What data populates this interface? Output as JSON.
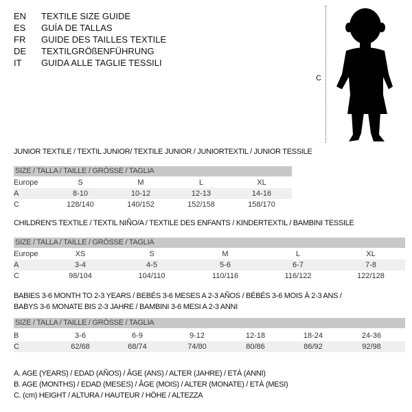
{
  "languages": [
    {
      "code": "EN",
      "text": "TEXTILE SIZE GUIDE"
    },
    {
      "code": "ES",
      "text": "GUÍA DE TALLAS"
    },
    {
      "code": "FR",
      "text": "GUIDE DES TAILLES TEXTILE"
    },
    {
      "code": "DE",
      "text": "TEXTILGRÖßENFÜHRUNG"
    },
    {
      "code": "IT",
      "text": "GUIDA ALLE TAGLIE TESSILI"
    }
  ],
  "figure": {
    "measure_label": "C",
    "icon": "child-silhouette"
  },
  "size_header": "SIZE / TALLA / TAILLE / GRÖSSE / TAGLIA",
  "tables": [
    {
      "title": "JUNIOR TEXTILE / TEXTIL JUNIOR/ TEXTILE JUNIOR / JUNIORTEXTIL / JUNIOR TESSILE",
      "rows": [
        {
          "label": "Europe",
          "cells": [
            "S",
            "M",
            "L",
            "XL"
          ]
        },
        {
          "label": "A",
          "cells": [
            "8-10",
            "10-12",
            "12-13",
            "14-16"
          ]
        },
        {
          "label": "C",
          "cells": [
            "128/140",
            "140/152",
            "152/158",
            "158/170"
          ]
        }
      ]
    },
    {
      "title": "CHILDREN'S TEXTILE / TEXTIL NIÑO/A / TEXTILE DES ENFANTS / KINDERTEXTIL / BAMBINI TESSILE",
      "rows": [
        {
          "label": "Europe",
          "cells": [
            "XS",
            "S",
            "M",
            "L",
            "XL"
          ]
        },
        {
          "label": "A",
          "cells": [
            "3-4",
            "4-5",
            "5-6",
            "6-7",
            "7-8"
          ]
        },
        {
          "label": "C",
          "cells": [
            "98/104",
            "104/110",
            "110/116",
            "116/122",
            "122/128"
          ]
        }
      ]
    },
    {
      "title": "BABIES 3-6 MONTH TO 2-3 YEARS / BEBÉS 3-6 MESES A 2-3 AÑOS / BÉBÉS 3-6 MOIS À 2-3 ANS /",
      "title2": "BABYS 3-6 MONATE BIS 2-3 JAHRE / BAMBINI 3-6 MESI A 2-3 ANNI",
      "rows": [
        {
          "label": "B",
          "cells": [
            "3-6",
            "6-9",
            "9-12",
            "12-18",
            "18-24",
            "24-36"
          ]
        },
        {
          "label": "C",
          "cells": [
            "62/68",
            "68/74",
            "74/80",
            "80/86",
            "86/92",
            "92/98"
          ]
        }
      ]
    }
  ],
  "notes": [
    "A. AGE (YEARS) / EDAD (AÑOS) / ÂGE (ANS) / ALTER (JAHRE) / ETÀ (ANNI)",
    "B. AGE (MONTHS) / EDAD (MESES) / ÂGE (MOIS) / ALTER (MONATE) / ETÀ (MESI)",
    "C. (cm) HEIGHT / ALTURA / HAUTEUR / HÖHE / ALTEZZA"
  ]
}
